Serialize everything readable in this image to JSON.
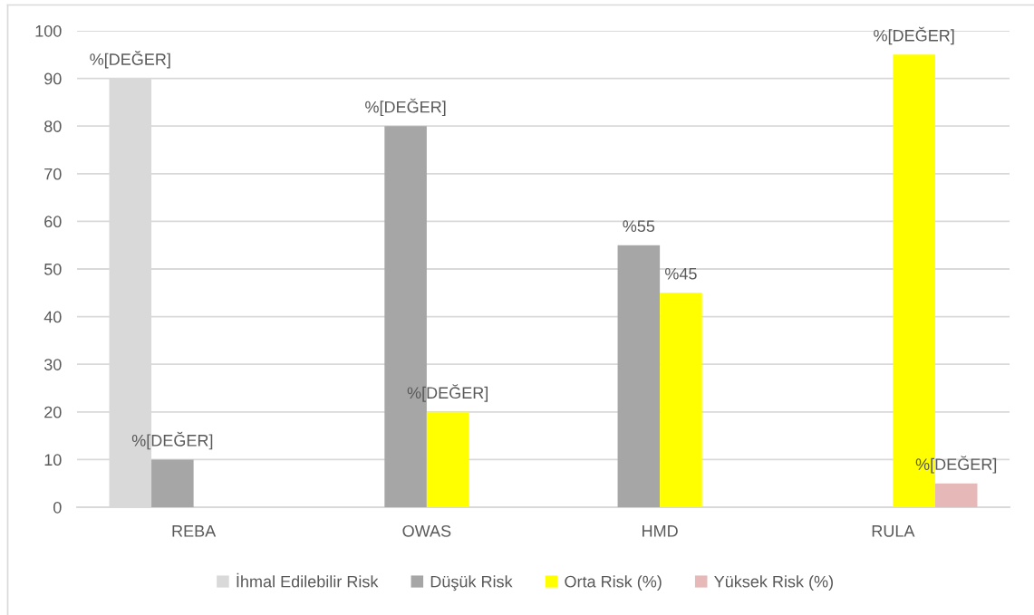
{
  "chart_data": {
    "type": "bar",
    "categories": [
      "REBA",
      "OWAS",
      "HMD",
      "RULA"
    ],
    "series": [
      {
        "name": "İhmal Edilebilir Risk",
        "color": "#d9d9d9",
        "values": [
          90,
          null,
          null,
          null
        ],
        "value_labels": [
          "%[DEĞER]",
          null,
          null,
          null
        ]
      },
      {
        "name": "Düşük Risk",
        "color": "#a6a6a6",
        "values": [
          10,
          80,
          55,
          null
        ],
        "value_labels": [
          "%[DEĞER]",
          "%[DEĞER]",
          "%55",
          null
        ]
      },
      {
        "name": "Orta Risk (%)",
        "color": "#ffff00",
        "values": [
          null,
          20,
          45,
          95
        ],
        "value_labels": [
          null,
          "%[DEĞER]",
          "%45",
          "%[DEĞER]"
        ]
      },
      {
        "name": "Yüksek Risk (%)",
        "color": "#e6b8b7",
        "values": [
          null,
          null,
          null,
          5
        ],
        "value_labels": [
          null,
          null,
          null,
          "%[DEĞER]"
        ]
      }
    ],
    "ylim": [
      0,
      100
    ],
    "yticks": [
      0,
      10,
      20,
      30,
      40,
      50,
      60,
      70,
      80,
      90,
      100
    ],
    "grid": "y",
    "legend": "bottom"
  }
}
